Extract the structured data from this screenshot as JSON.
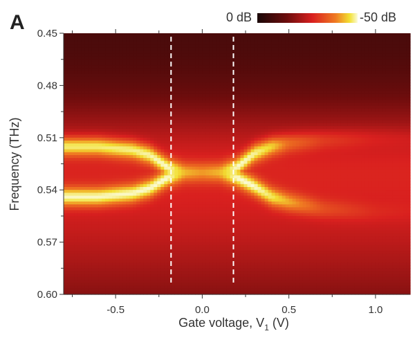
{
  "panel_label": "A",
  "chart_data": {
    "type": "heatmap",
    "title": "",
    "xlabel": "Gate voltage, V",
    "xlabel_subscript": "1",
    "xlabel_unit": " (V)",
    "ylabel": "Frequency (THz)",
    "xlim": [
      -0.8,
      1.2
    ],
    "ylim": [
      0.6,
      0.45
    ],
    "y_inverted": true,
    "x_ticks": [
      -0.5,
      0.0,
      0.5,
      1.0
    ],
    "x_tick_labels": [
      "-0.5",
      "0.0",
      "0.5",
      "1.0"
    ],
    "y_ticks": [
      0.45,
      0.48,
      0.51,
      0.54,
      0.57,
      0.6
    ],
    "y_tick_labels": [
      "0.45",
      "0.48",
      "0.51",
      "0.54",
      "0.57",
      "0.60"
    ],
    "colorbar": {
      "min_label": "0 dB",
      "max_label": "-50 dB",
      "range_db": [
        0,
        -50
      ],
      "colors": [
        "#1a0707",
        "#6e0d0d",
        "#d9201f",
        "#ef7a22",
        "#f2e033",
        "#fbfbd8"
      ],
      "placement": "top-right"
    },
    "dashed_lines_x": [
      -0.18,
      0.18
    ],
    "dashed_line_color": "#ffffff",
    "resonance_branches": {
      "voltage": [
        -0.8,
        -0.6,
        -0.4,
        -0.3,
        -0.2,
        -0.1,
        0.0,
        0.1,
        0.2,
        0.3,
        0.4,
        0.5,
        0.7,
        1.0,
        1.2
      ],
      "upper_THz": [
        0.515,
        0.515,
        0.517,
        0.52,
        0.527,
        0.53,
        0.53,
        0.53,
        0.527,
        0.519,
        0.515,
        0.513,
        0.511,
        0.51,
        0.51
      ],
      "lower_THz": [
        0.544,
        0.544,
        0.542,
        0.539,
        0.533,
        0.53,
        0.53,
        0.53,
        0.533,
        0.538,
        0.544,
        0.547,
        0.551,
        0.553,
        0.553
      ],
      "upper_strength": [
        1,
        1,
        1,
        1,
        1,
        0.7,
        0.6,
        0.7,
        1,
        1,
        0.9,
        0.55,
        0.3,
        0.15,
        0.1
      ],
      "lower_strength": [
        1,
        1,
        1,
        1,
        1,
        0.7,
        0.6,
        0.7,
        1,
        1,
        0.9,
        0.7,
        0.3,
        0.1,
        0.05
      ]
    }
  }
}
